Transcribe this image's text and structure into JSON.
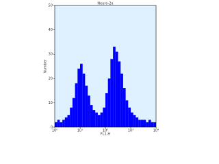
{
  "chart_data": {
    "type": "histogram",
    "title": "Neuro-2a",
    "xlabel": "FL1-H",
    "ylabel": "Number",
    "bins": [
      1,
      1.26,
      1.58,
      2,
      2.51,
      3.16,
      3.98,
      5.01,
      6.31,
      7.94,
      10,
      12.6,
      15.8,
      20,
      25.1,
      31.6,
      39.8,
      50.1,
      63.1,
      79.4,
      100,
      126,
      158,
      200,
      251,
      316,
      398,
      501,
      631,
      794,
      1000,
      1260,
      1580,
      2000,
      2510,
      3160,
      3980,
      5010,
      6310,
      7940,
      10000
    ],
    "values": [
      2,
      3,
      2,
      3,
      4,
      5,
      8,
      12,
      18,
      24,
      26,
      22,
      17,
      13,
      9,
      7,
      6,
      5,
      6,
      8,
      14,
      20,
      28,
      33,
      31,
      27,
      22,
      16,
      11,
      8,
      6,
      5,
      4,
      3,
      3,
      3,
      2,
      3,
      2,
      2
    ],
    "color": "#0000ff",
    "background": "#dff0ff",
    "xscale": "log",
    "xlim": [
      1,
      10000
    ],
    "xticks": [
      {
        "value": 1,
        "label": "10⁰"
      },
      {
        "value": 10,
        "label": "10¹"
      },
      {
        "value": 100,
        "label": "10²"
      },
      {
        "value": 1000,
        "label": "10³"
      },
      {
        "value": 10000,
        "label": "10⁴"
      }
    ],
    "ylim": [
      0,
      50
    ],
    "yticks": [
      0,
      10,
      20,
      30,
      40,
      50
    ]
  }
}
